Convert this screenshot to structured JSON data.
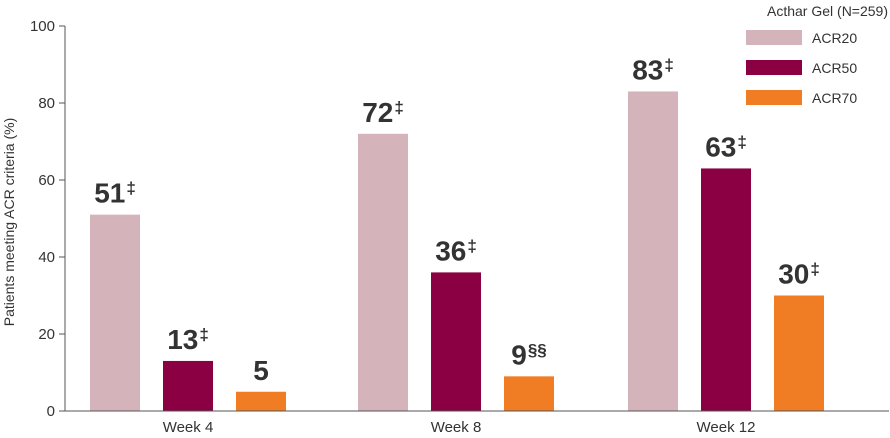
{
  "chart_data": {
    "type": "bar",
    "categories": [
      "Week 4",
      "Week 8",
      "Week 12"
    ],
    "series": [
      {
        "name": "ACR20",
        "color": "#d5b3bb",
        "values": [
          51,
          72,
          83
        ],
        "labels": [
          "51",
          "72",
          "83"
        ],
        "marks": [
          "‡",
          "‡",
          "‡"
        ]
      },
      {
        "name": "ACR50",
        "color": "#8a0042",
        "values": [
          13,
          36,
          63
        ],
        "labels": [
          "13",
          "36",
          "63"
        ],
        "marks": [
          "‡",
          "‡",
          "‡"
        ]
      },
      {
        "name": "ACR70",
        "color": "#f07d23",
        "values": [
          5,
          9,
          30
        ],
        "labels": [
          "5",
          "9",
          "30"
        ],
        "marks": [
          "",
          "§§",
          "‡"
        ]
      }
    ],
    "ylabel": "Patients meeting ACR criteria (%)",
    "ylim": [
      0,
      100
    ],
    "yticks": [
      0,
      20,
      40,
      60,
      80,
      100
    ],
    "legend_title": "Acthar Gel (N=259)",
    "legend_position": "top-right",
    "grid": false
  }
}
